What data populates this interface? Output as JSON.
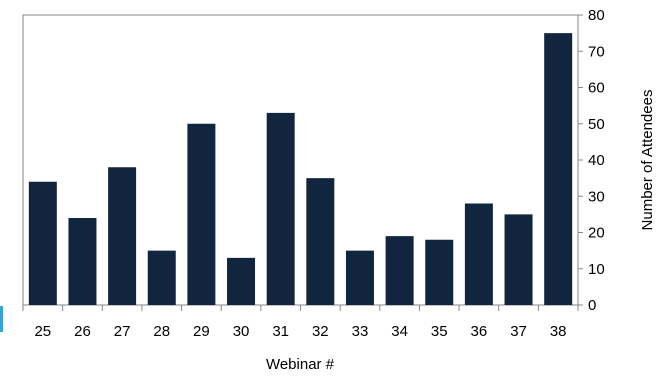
{
  "chart_data": {
    "type": "bar",
    "categories": [
      "25",
      "26",
      "27",
      "28",
      "29",
      "30",
      "31",
      "32",
      "33",
      "34",
      "35",
      "36",
      "37",
      "38"
    ],
    "values": [
      34,
      24,
      38,
      15,
      50,
      13,
      53,
      35,
      15,
      19,
      18,
      28,
      25,
      75
    ],
    "title": "",
    "xlabel": "Webinar #",
    "ylabel": "Number of Attendees",
    "ylim": [
      0,
      80
    ],
    "yticks": [
      0,
      10,
      20,
      30,
      40,
      50,
      60,
      70,
      80
    ],
    "y_axis_side": "right",
    "grid": false,
    "legend": "none",
    "bar_color": "#12253f",
    "frame_color": "#868686"
  }
}
